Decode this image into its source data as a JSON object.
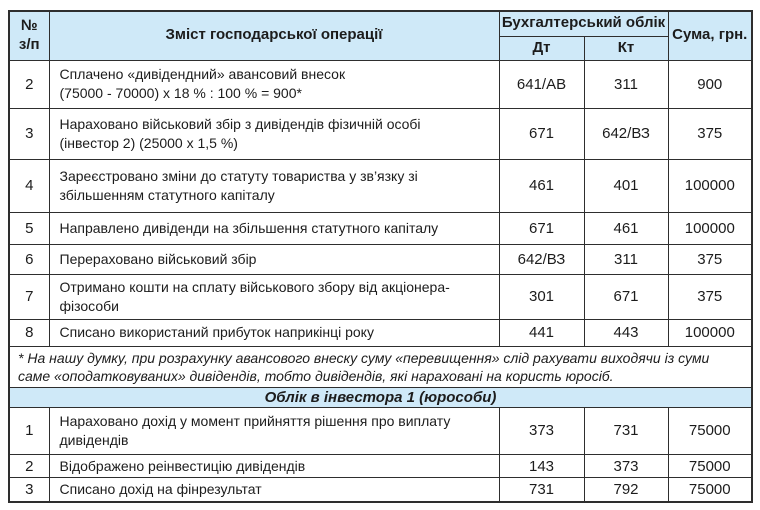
{
  "colors": {
    "header_bg": "#cfe9f8",
    "border": "#2e2e2e",
    "text": "#1c1c1c"
  },
  "table": {
    "header": {
      "num": "№\nз/п",
      "desc": "Зміст господарської операції",
      "accounting": "Бухгалтерський облік",
      "dt": "Дт",
      "kt": "Кт",
      "sum": "Сума, грн."
    },
    "rows": [
      {
        "num": "2",
        "desc": "Сплачено «дивідендний» авансовий внесок\n(75000 - 70000) х 18 % : 100 % = 900*",
        "dt": "641/АВ",
        "kt": "311",
        "sum": "900"
      },
      {
        "num": "3",
        "desc": "Нараховано військовий збір з дивідендів фізичній особі\n(інвестор 2) (25000 х 1,5 %)",
        "dt": "671",
        "kt": "642/ВЗ",
        "sum": "375"
      },
      {
        "num": "4",
        "desc": "Зареєстровано зміни до статуту товариства у зв’язку зі\nзбільшенням статутного капіталу",
        "dt": "461",
        "kt": "401",
        "sum": "100000"
      },
      {
        "num": "5",
        "desc": "Направлено дивіденди на збільшення статутного капіталу",
        "dt": "671",
        "kt": "461",
        "sum": "100000"
      },
      {
        "num": "6",
        "desc": "Перераховано військовий збір",
        "dt": "642/ВЗ",
        "kt": "311",
        "sum": "375"
      },
      {
        "num": "7",
        "desc": "Отримано кошти на сплату військового збору від акціонера-\nфізособи",
        "dt": "301",
        "kt": "671",
        "sum": "375"
      },
      {
        "num": "8",
        "desc": "Списано використаний прибуток наприкінці року",
        "dt": "441",
        "kt": "443",
        "sum": "100000"
      }
    ],
    "footnote": "* На нашу думку, при розрахунку авансового внеску суму «перевищення» слід рахувати виходячи із суми\nсаме «оподатковуваних» дивідендів, тобто дивідендів, які нараховані на користь юросіб.",
    "section2_title": "Облік в інвестора 1 (юрособи)",
    "section2_rows": [
      {
        "num": "1",
        "desc": "Нараховано дохід у момент прийняття рішення про виплату\nдивідендів",
        "dt": "373",
        "kt": "731",
        "sum": "75000"
      },
      {
        "num": "2",
        "desc": "Відображено реінвестицію дивідендів",
        "dt": "143",
        "kt": "373",
        "sum": "75000"
      },
      {
        "num": "3",
        "desc": "Списано дохід на фінрезультат",
        "dt": "731",
        "kt": "792",
        "sum": "75000"
      }
    ]
  }
}
